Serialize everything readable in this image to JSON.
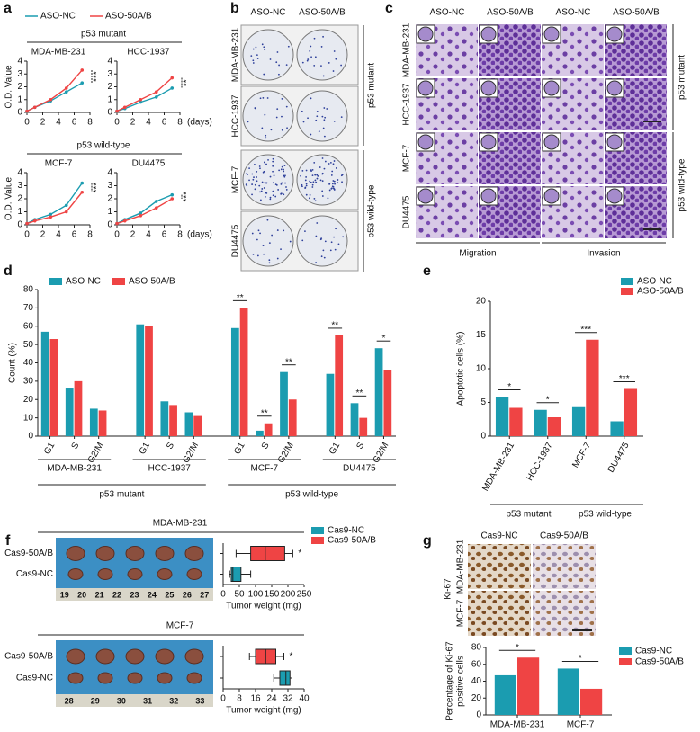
{
  "panel_letters": [
    "a",
    "b",
    "c",
    "d",
    "e",
    "f",
    "g"
  ],
  "colony_assay": {
    "columns": [
      "ASO-NC",
      "ASO-50A/B"
    ],
    "rows": [
      "MDA-MB-231",
      "HCC-1937",
      "MCF-7",
      "DU4475"
    ],
    "groups": [
      "p53 mutant",
      "p53 wild-type"
    ]
  },
  "transwell_assay": {
    "columns": [
      "ASO-NC",
      "ASO-50A/B",
      "ASO-NC",
      "ASO-50A/B"
    ],
    "rows": [
      "MDA-MB-231",
      "HCC-1937",
      "MCF-7",
      "DU4475"
    ],
    "groups": [
      "p53 mutant",
      "p53 wild-type"
    ],
    "assays": [
      "Migration",
      "Invasion"
    ]
  },
  "tumor_photos": [
    {
      "ruler": [
        "19",
        "20",
        "21",
        "22",
        "23",
        "24",
        "25",
        "26",
        "27"
      ]
    },
    {
      "ruler": [
        "28",
        "29",
        "30",
        "31",
        "32",
        "33"
      ]
    }
  ],
  "ihc": {
    "columns": [
      "Cas9-NC",
      "Cas9-50A/B"
    ],
    "rows": [
      "MDA-MB-231",
      "MCF-7"
    ],
    "marker": "Ki-67"
  },
  "chart_data": [
    {
      "type": "line",
      "group_label": "p53 mutant",
      "title": "MDA-MB-231",
      "ylabel": "O.D. Value",
      "x": [
        0,
        1,
        3,
        5,
        7
      ],
      "xlim": [
        0,
        8
      ],
      "xticks": [
        0,
        2,
        4,
        6,
        8
      ],
      "ylim": [
        0,
        4
      ],
      "yticks": [
        0,
        1,
        2,
        3,
        4
      ],
      "significance": "***",
      "series": [
        {
          "name": "ASO-NC",
          "color": "#1b9cb0",
          "values": [
            0.1,
            0.4,
            0.9,
            1.6,
            2.3
          ]
        },
        {
          "name": "ASO-50A/B",
          "color": "#ef4444",
          "values": [
            0.1,
            0.4,
            1.0,
            1.9,
            3.3
          ]
        }
      ]
    },
    {
      "type": "line",
      "title": "HCC-1937",
      "xlabel": "(days)",
      "x": [
        0,
        1,
        3,
        5,
        7
      ],
      "xlim": [
        0,
        8
      ],
      "xticks": [
        0,
        2,
        4,
        6,
        8
      ],
      "ylim": [
        0,
        4
      ],
      "yticks": [
        0,
        1,
        2,
        3,
        4
      ],
      "significance": "**",
      "series": [
        {
          "color": "#1b9cb0",
          "values": [
            0.1,
            0.3,
            0.8,
            1.2,
            1.9
          ]
        },
        {
          "color": "#ef4444",
          "values": [
            0.1,
            0.4,
            1.0,
            1.6,
            2.7
          ]
        }
      ]
    },
    {
      "type": "line",
      "group_label": "p53 wild-type",
      "title": "MCF-7",
      "ylabel": "O.D. Value",
      "x": [
        0,
        1,
        3,
        5,
        7
      ],
      "xlim": [
        0,
        8
      ],
      "xticks": [
        0,
        2,
        4,
        6,
        8
      ],
      "ylim": [
        0,
        4
      ],
      "yticks": [
        0,
        1,
        2,
        3,
        4
      ],
      "significance": "***",
      "series": [
        {
          "color": "#1b9cb0",
          "values": [
            0.1,
            0.4,
            0.8,
            1.5,
            3.2
          ]
        },
        {
          "color": "#ef4444",
          "values": [
            0.1,
            0.3,
            0.6,
            1.0,
            2.5
          ]
        }
      ]
    },
    {
      "type": "line",
      "title": "DU4475",
      "xlabel": "(days)",
      "x": [
        0,
        1,
        3,
        5,
        7
      ],
      "xlim": [
        0,
        8
      ],
      "xticks": [
        0,
        2,
        4,
        6,
        8
      ],
      "ylim": [
        0,
        4
      ],
      "yticks": [
        0,
        1,
        2,
        3,
        4
      ],
      "significance": "***",
      "series": [
        {
          "color": "#1b9cb0",
          "values": [
            0.1,
            0.4,
            0.9,
            1.8,
            2.3
          ]
        },
        {
          "color": "#ef4444",
          "values": [
            0.1,
            0.3,
            0.7,
            1.3,
            2.0
          ]
        }
      ]
    },
    {
      "type": "bar",
      "ylabel": "Count (%)",
      "categories": [
        "G1",
        "S",
        "G2/M",
        "G1",
        "S",
        "G2/M",
        "G1",
        "S",
        "G2/M",
        "G1",
        "S",
        "G2/M"
      ],
      "group_names": [
        "MDA-MB-231",
        "HCC-1937",
        "MCF-7",
        "DU4475"
      ],
      "super_groups": [
        "p53 mutant",
        "p53 wild-type"
      ],
      "ylim": [
        0,
        80
      ],
      "yticks": [
        0,
        10,
        20,
        30,
        40,
        50,
        60,
        70,
        80
      ],
      "significance": [
        null,
        null,
        null,
        null,
        null,
        null,
        "**",
        "**",
        "**",
        "**",
        "**",
        "*"
      ],
      "series": [
        {
          "name": "ASO-NC",
          "color": "#1b9cb0",
          "values": [
            57,
            26,
            15,
            61,
            19,
            13,
            59,
            3,
            35,
            34,
            18,
            48
          ]
        },
        {
          "name": "ASO-50A/B",
          "color": "#ef4444",
          "values": [
            53,
            30,
            14,
            60,
            17,
            11,
            70,
            7,
            20,
            55,
            10,
            36
          ]
        }
      ]
    },
    {
      "type": "bar",
      "ylabel": "Apoptotic cells (%)",
      "categories": [
        "MDA-MB-231",
        "HCC-1937",
        "MCF-7",
        "DU4475"
      ],
      "super_groups": [
        "p53 mutant",
        "p53 wild-type"
      ],
      "ylim": [
        0,
        20
      ],
      "yticks": [
        0,
        5,
        10,
        15,
        20
      ],
      "significance": [
        "*",
        "*",
        "***",
        "***"
      ],
      "series": [
        {
          "name": "ASO-NC",
          "color": "#1b9cb0",
          "values": [
            5.8,
            3.9,
            4.3,
            2.2
          ]
        },
        {
          "name": "ASO-50A/B",
          "color": "#ef4444",
          "values": [
            4.2,
            2.8,
            14.3,
            7.0
          ]
        }
      ]
    },
    {
      "type": "box",
      "title": "MDA-MB-231",
      "xlabel": "Tumor weight (mg)",
      "categories": [
        "Cas9-50A/B",
        "Cas9-NC"
      ],
      "xlim": [
        0,
        250
      ],
      "xticks": [
        0,
        50,
        100,
        150,
        200,
        250
      ],
      "significance": "*",
      "legend": [
        {
          "name": "Cas9-NC",
          "color": "#1b9cb0"
        },
        {
          "name": "Cas9-50A/B",
          "color": "#ef4444"
        }
      ],
      "boxes": [
        {
          "color": "#ef4444",
          "min": 40,
          "q1": 85,
          "median": 130,
          "q3": 190,
          "max": 215
        },
        {
          "color": "#1b9cb0",
          "min": 20,
          "q1": 25,
          "median": 30,
          "q3": 55,
          "max": 85
        }
      ]
    },
    {
      "type": "box",
      "title": "MCF-7",
      "xlabel": "Tumor weight (mg)",
      "categories": [
        "Cas9-50A/B",
        "Cas9-NC"
      ],
      "xlim": [
        0,
        40
      ],
      "xticks": [
        0,
        8,
        16,
        24,
        32,
        40
      ],
      "significance": "*",
      "boxes": [
        {
          "color": "#ef4444",
          "min": 13,
          "q1": 16,
          "median": 21,
          "q3": 26,
          "max": 30
        },
        {
          "color": "#1b9cb0",
          "min": 25,
          "q1": 28,
          "median": 31,
          "q3": 33,
          "max": 34
        }
      ]
    },
    {
      "type": "bar",
      "ylabel": [
        "Percentage of Ki-67",
        "positive cells"
      ],
      "categories": [
        "MDA-MB-231",
        "MCF-7"
      ],
      "ylim": [
        0,
        80
      ],
      "yticks": [
        0,
        20,
        40,
        60,
        80
      ],
      "significance": [
        "*",
        "*"
      ],
      "series": [
        {
          "name": "Cas9-NC",
          "color": "#1b9cb0",
          "values": [
            47,
            55
          ]
        },
        {
          "name": "Cas9-50A/B",
          "color": "#ef4444",
          "values": [
            68,
            31
          ]
        }
      ]
    }
  ]
}
